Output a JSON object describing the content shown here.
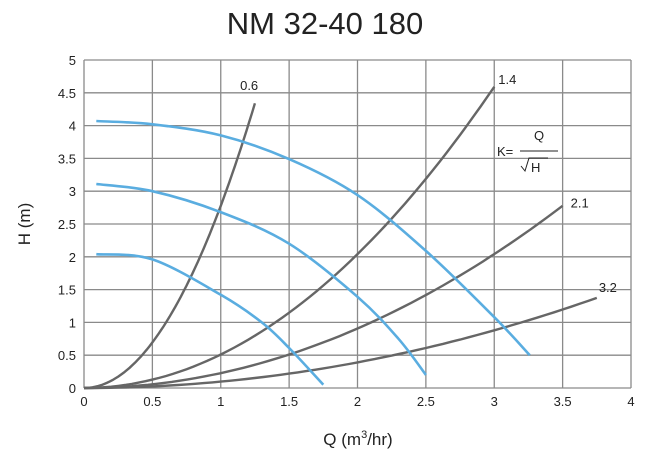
{
  "chart_data": {
    "type": "line",
    "title": "NM 32-40 180",
    "xlabel": {
      "prefix": "Q (m",
      "sup": "3",
      "suffix": "/hr)"
    },
    "ylabel": "H (m)",
    "xlim": [
      0,
      4
    ],
    "ylim": [
      0,
      5
    ],
    "xticks": [
      "0",
      "0.5",
      "1",
      "1.5",
      "2",
      "2.5",
      "3",
      "3.5",
      "4"
    ],
    "yticks": [
      "0",
      "0.5",
      "1",
      "1.5",
      "2",
      "2.5",
      "3",
      "3.5",
      "4",
      "4.5",
      "5"
    ],
    "grid": true,
    "colors": {
      "pump": "#5aade0",
      "system": "#666666",
      "grid": "#8a8a8a"
    },
    "pump_curves": [
      {
        "points": [
          [
            0.09,
            4.07
          ],
          [
            0.5,
            4.02
          ],
          [
            1.0,
            3.85
          ],
          [
            1.5,
            3.49
          ],
          [
            2.0,
            2.94
          ],
          [
            2.5,
            2.09
          ],
          [
            3.0,
            1.08
          ],
          [
            3.26,
            0.5
          ]
        ]
      },
      {
        "points": [
          [
            0.09,
            3.11
          ],
          [
            0.5,
            3.0
          ],
          [
            1.0,
            2.68
          ],
          [
            1.5,
            2.2
          ],
          [
            2.0,
            1.39
          ],
          [
            2.3,
            0.75
          ],
          [
            2.5,
            0.2
          ]
        ]
      },
      {
        "points": [
          [
            0.09,
            2.04
          ],
          [
            0.5,
            1.96
          ],
          [
            1.0,
            1.42
          ],
          [
            1.3,
            1.0
          ],
          [
            1.5,
            0.61
          ],
          [
            1.75,
            0.05
          ]
        ]
      }
    ],
    "system_curves": [
      {
        "label": "0.6",
        "K": 0.6,
        "qmax": 1.25
      },
      {
        "label": "1.4",
        "K": 1.4,
        "qmax": 3.0
      },
      {
        "label": "2.1",
        "K": 2.1,
        "qmax": 3.5
      },
      {
        "label": "3.2",
        "K": 3.2,
        "qmax": 3.75
      }
    ],
    "formula": {
      "lhs": "K=",
      "num": "Q",
      "den": "H"
    }
  }
}
